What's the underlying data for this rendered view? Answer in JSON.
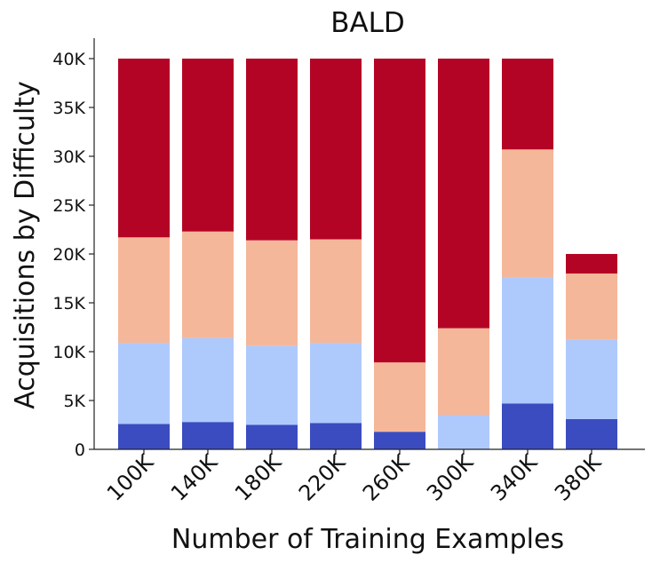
{
  "chart_data": {
    "type": "bar",
    "stacked": true,
    "title": "BALD",
    "xlabel": "Number of Training Examples",
    "ylabel": "Acquisitions by Difficulty",
    "categories": [
      "100K",
      "140K",
      "180K",
      "220K",
      "260K",
      "300K",
      "340K",
      "380K"
    ],
    "ylim": [
      0,
      42000
    ],
    "yticks": [
      0,
      5000,
      10000,
      15000,
      20000,
      25000,
      30000,
      35000,
      40000
    ],
    "ytick_labels": [
      "0",
      "5K",
      "10K",
      "15K",
      "20K",
      "25K",
      "30K",
      "35K",
      "40K"
    ],
    "grid": false,
    "series": [
      {
        "color": "#3b4cc0",
        "values": [
          2600,
          2800,
          2500,
          2700,
          1800,
          0,
          4700,
          3100
        ]
      },
      {
        "color": "#aec9fc",
        "values": [
          8300,
          8600,
          8100,
          8200,
          0,
          3500,
          12900,
          8100
        ]
      },
      {
        "color": "#f5b79a",
        "values": [
          10800,
          10900,
          10800,
          10600,
          7100,
          8900,
          13100,
          6800
        ]
      },
      {
        "color": "#b40426",
        "values": [
          18300,
          17700,
          18600,
          18500,
          31100,
          27600,
          9300,
          2000
        ]
      }
    ]
  }
}
